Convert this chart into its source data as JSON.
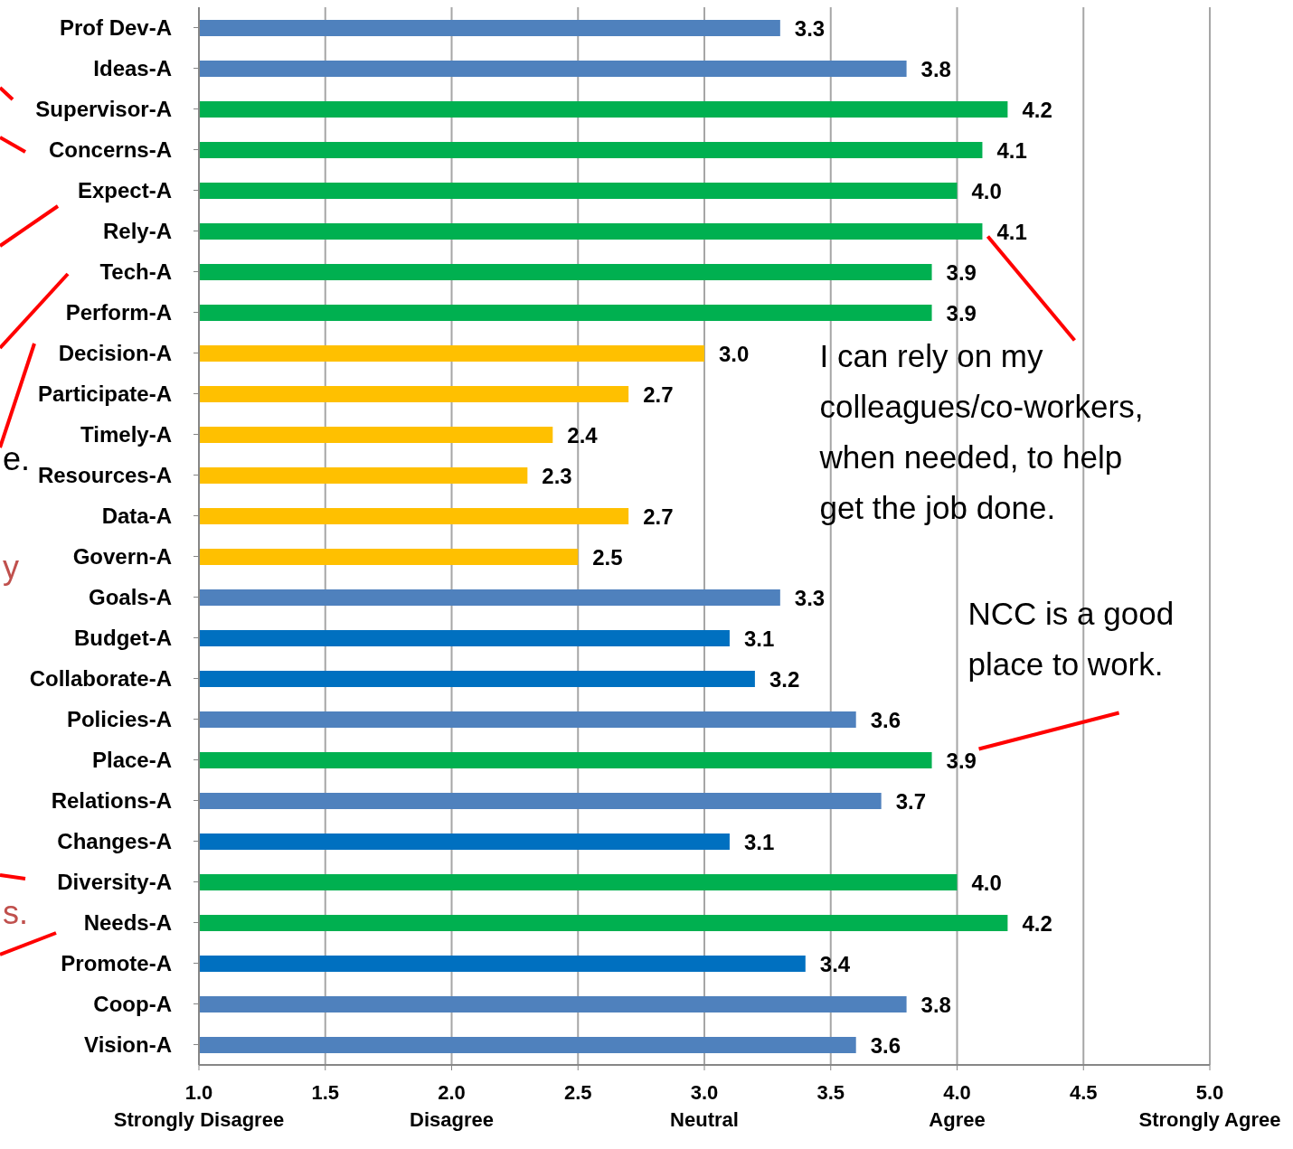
{
  "chart_data": {
    "type": "bar",
    "orientation": "horizontal",
    "categories": [
      "Prof Dev-A",
      "Ideas-A",
      "Supervisor-A",
      "Concerns-A",
      "Expect-A",
      "Rely-A",
      "Tech-A",
      "Perform-A",
      "Decision-A",
      "Participate-A",
      "Timely-A",
      "Resources-A",
      "Data-A",
      "Govern-A",
      "Goals-A",
      "Budget-A",
      "Collaborate-A",
      "Policies-A",
      "Place-A",
      "Relations-A",
      "Changes-A",
      "Diversity-A",
      "Needs-A",
      "Promote-A",
      "Coop-A",
      "Vision-A"
    ],
    "values": [
      3.3,
      3.8,
      4.2,
      4.1,
      4.0,
      4.1,
      3.9,
      3.9,
      3.0,
      2.7,
      2.4,
      2.3,
      2.7,
      2.5,
      3.3,
      3.1,
      3.2,
      3.6,
      3.9,
      3.7,
      3.1,
      4.0,
      4.2,
      3.4,
      3.8,
      3.6
    ],
    "colors": [
      "#4f81bd",
      "#4f81bd",
      "#00b050",
      "#00b050",
      "#00b050",
      "#00b050",
      "#00b050",
      "#00b050",
      "#ffc000",
      "#ffc000",
      "#ffc000",
      "#ffc000",
      "#ffc000",
      "#ffc000",
      "#4f81bd",
      "#0070c0",
      "#0070c0",
      "#4f81bd",
      "#00b050",
      "#4f81bd",
      "#0070c0",
      "#00b050",
      "#00b050",
      "#0070c0",
      "#4f81bd",
      "#4f81bd"
    ],
    "value_labels": [
      "3.3",
      "3.8",
      "4.2",
      "4.1",
      "4.0",
      "4.1",
      "3.9",
      "3.9",
      "3.0",
      "2.7",
      "2.4",
      "2.3",
      "2.7",
      "2.5",
      "3.3",
      "3.1",
      "3.2",
      "3.6",
      "3.9",
      "3.7",
      "3.1",
      "4.0",
      "4.2",
      "3.4",
      "3.8",
      "3.6"
    ],
    "xlim": [
      1,
      5
    ],
    "xticks": [
      {
        "value": 1,
        "label": "1.0\nStrongly Disagree"
      },
      {
        "value": 1.5,
        "label": "1.5"
      },
      {
        "value": 2,
        "label": "2.0\nDisagree"
      },
      {
        "value": 2.5,
        "label": "2.5"
      },
      {
        "value": 3,
        "label": "3.0\nNeutral"
      },
      {
        "value": 3.5,
        "label": "3.5"
      },
      {
        "value": 4,
        "label": "4.0\nAgree"
      },
      {
        "value": 4.5,
        "label": "4.5"
      },
      {
        "value": 5,
        "label": "5.0\nStrongly Agree"
      }
    ],
    "grid": "x",
    "annotations": [
      {
        "text": "I can rely on my colleagues/co-workers, when needed, to help get the job done.",
        "x": 4.1,
        "y": "Rely-A"
      },
      {
        "text": "NCC is a good place to work.",
        "x": 3.9,
        "y": "Place-A"
      },
      "e.",
      "y",
      "s."
    ]
  }
}
